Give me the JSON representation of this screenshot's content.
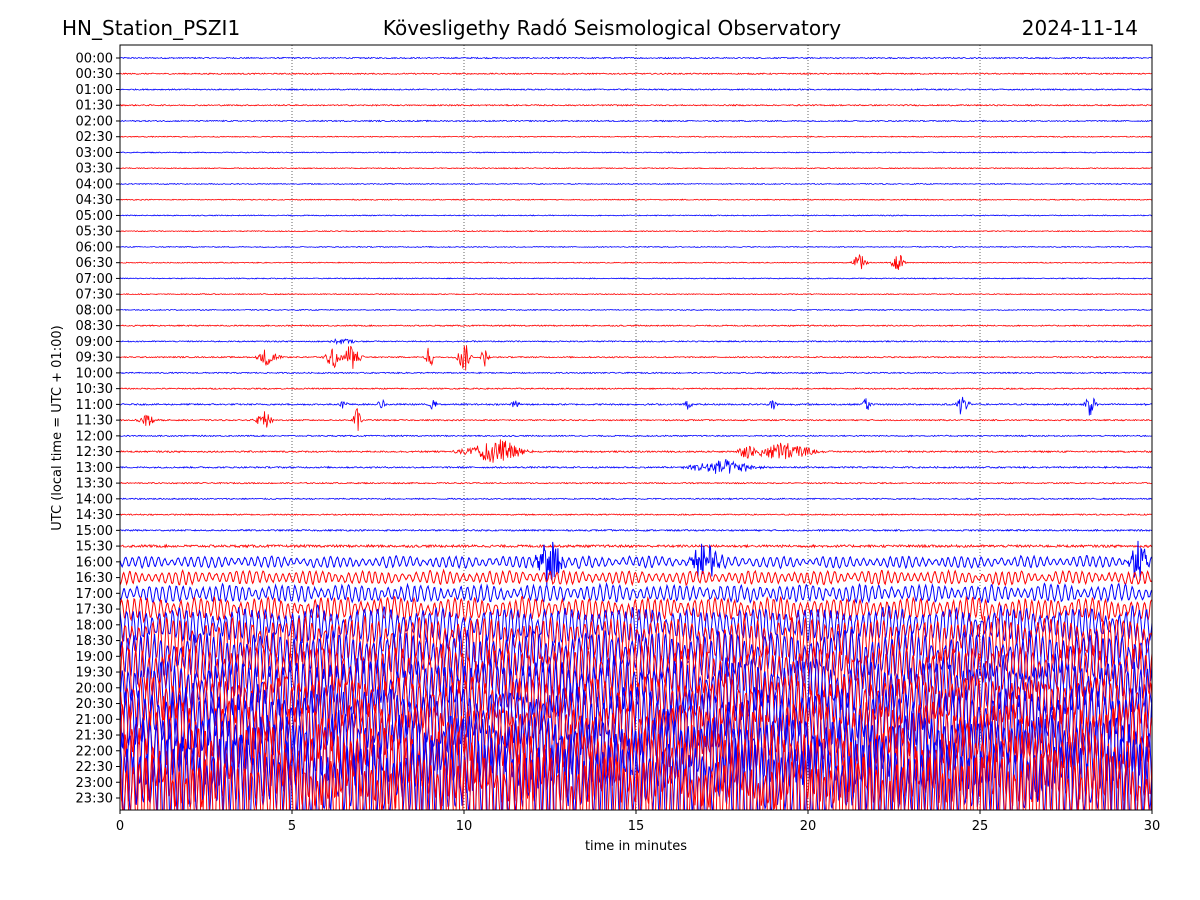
{
  "header": {
    "station": "HN_Station_PSZI1",
    "observatory": "Kövesligethy Radó Seismological Observatory",
    "date": "2024-11-14"
  },
  "chart_data": {
    "type": "line",
    "title": "Kövesligethy Radó Seismological Observatory",
    "xlabel": "time in minutes",
    "ylabel": "UTC (local time = UTC + 01:00)",
    "xlim": [
      0,
      30
    ],
    "xticks": [
      "0",
      "5",
      "10",
      "15",
      "20",
      "25",
      "30"
    ],
    "xtick_values": [
      0,
      5,
      10,
      15,
      20,
      25,
      30
    ],
    "grid": "vertical dotted at x ticks",
    "colors": [
      "#0000ff",
      "#ff0000"
    ],
    "traces": [
      {
        "label": "00:00",
        "noise": 0.04
      },
      {
        "label": "00:30",
        "noise": 0.04
      },
      {
        "label": "01:00",
        "noise": 0.04
      },
      {
        "label": "01:30",
        "noise": 0.04
      },
      {
        "label": "02:00",
        "noise": 0.04
      },
      {
        "label": "02:30",
        "noise": 0.03
      },
      {
        "label": "03:00",
        "noise": 0.03
      },
      {
        "label": "03:30",
        "noise": 0.03
      },
      {
        "label": "04:00",
        "noise": 0.03
      },
      {
        "label": "04:30",
        "noise": 0.03
      },
      {
        "label": "05:00",
        "noise": 0.03
      },
      {
        "label": "05:30",
        "noise": 0.03
      },
      {
        "label": "06:00",
        "noise": 0.03
      },
      {
        "label": "06:30",
        "noise": 0.03
      },
      {
        "label": "07:00",
        "noise": 0.03
      },
      {
        "label": "07:30",
        "noise": 0.03
      },
      {
        "label": "08:00",
        "noise": 0.03
      },
      {
        "label": "08:30",
        "noise": 0.04
      },
      {
        "label": "09:00",
        "noise": 0.04
      },
      {
        "label": "09:30",
        "noise": 0.04
      },
      {
        "label": "10:00",
        "noise": 0.04
      },
      {
        "label": "10:30",
        "noise": 0.04
      },
      {
        "label": "11:00",
        "noise": 0.05
      },
      {
        "label": "11:30",
        "noise": 0.04
      },
      {
        "label": "12:00",
        "noise": 0.04
      },
      {
        "label": "12:30",
        "noise": 0.05
      },
      {
        "label": "13:00",
        "noise": 0.05
      },
      {
        "label": "13:30",
        "noise": 0.04
      },
      {
        "label": "14:00",
        "noise": 0.04
      },
      {
        "label": "14:30",
        "noise": 0.04
      },
      {
        "label": "15:00",
        "noise": 0.05
      },
      {
        "label": "15:30",
        "noise": 0.08
      },
      {
        "label": "16:00",
        "noise": 0.3
      },
      {
        "label": "16:30",
        "noise": 0.35
      },
      {
        "label": "17:00",
        "noise": 0.45
      },
      {
        "label": "17:30",
        "noise": 0.6
      },
      {
        "label": "18:00",
        "noise": 0.9
      },
      {
        "label": "18:30",
        "noise": 1.2
      },
      {
        "label": "19:00",
        "noise": 1.3
      },
      {
        "label": "19:30",
        "noise": 1.4
      },
      {
        "label": "20:00",
        "noise": 1.5
      },
      {
        "label": "20:30",
        "noise": 1.4
      },
      {
        "label": "21:00",
        "noise": 1.7
      },
      {
        "label": "21:30",
        "noise": 1.8
      },
      {
        "label": "22:00",
        "noise": 2.0
      },
      {
        "label": "22:30",
        "noise": 2.1
      },
      {
        "label": "23:00",
        "noise": 2.3
      },
      {
        "label": "23:30",
        "noise": 2.4
      }
    ],
    "events": [
      {
        "trace": 13,
        "t": 21.5,
        "amp": 0.6,
        "dur": 0.15
      },
      {
        "trace": 13,
        "t": 22.6,
        "amp": 0.7,
        "dur": 0.15
      },
      {
        "trace": 18,
        "t": 6.5,
        "amp": 0.2,
        "dur": 0.3
      },
      {
        "trace": 19,
        "t": 4.3,
        "amp": 0.6,
        "dur": 0.25
      },
      {
        "trace": 19,
        "t": 6.2,
        "amp": 0.8,
        "dur": 0.2
      },
      {
        "trace": 19,
        "t": 6.7,
        "amp": 0.8,
        "dur": 0.25
      },
      {
        "trace": 19,
        "t": 9.0,
        "amp": 0.8,
        "dur": 0.1
      },
      {
        "trace": 19,
        "t": 10.0,
        "amp": 1.0,
        "dur": 0.15
      },
      {
        "trace": 19,
        "t": 10.6,
        "amp": 0.6,
        "dur": 0.1
      },
      {
        "trace": 22,
        "t": 6.5,
        "amp": 0.4,
        "dur": 0.1
      },
      {
        "trace": 22,
        "t": 7.6,
        "amp": 0.3,
        "dur": 0.1
      },
      {
        "trace": 22,
        "t": 9.1,
        "amp": 0.4,
        "dur": 0.1
      },
      {
        "trace": 22,
        "t": 11.5,
        "amp": 0.3,
        "dur": 0.1
      },
      {
        "trace": 22,
        "t": 16.5,
        "amp": 0.3,
        "dur": 0.1
      },
      {
        "trace": 22,
        "t": 19.0,
        "amp": 0.5,
        "dur": 0.1
      },
      {
        "trace": 22,
        "t": 21.7,
        "amp": 0.6,
        "dur": 0.1
      },
      {
        "trace": 22,
        "t": 24.5,
        "amp": 0.8,
        "dur": 0.15
      },
      {
        "trace": 22,
        "t": 28.2,
        "amp": 0.7,
        "dur": 0.15
      },
      {
        "trace": 23,
        "t": 0.8,
        "amp": 0.4,
        "dur": 0.2
      },
      {
        "trace": 23,
        "t": 4.2,
        "amp": 0.6,
        "dur": 0.2
      },
      {
        "trace": 23,
        "t": 6.9,
        "amp": 0.8,
        "dur": 0.1
      },
      {
        "trace": 25,
        "t": 11.0,
        "amp": 0.8,
        "dur": 0.6
      },
      {
        "trace": 25,
        "t": 10.3,
        "amp": 0.3,
        "dur": 0.5
      },
      {
        "trace": 25,
        "t": 18.2,
        "amp": 0.6,
        "dur": 0.2
      },
      {
        "trace": 25,
        "t": 19.3,
        "amp": 0.6,
        "dur": 0.7
      },
      {
        "trace": 26,
        "t": 17.5,
        "amp": 0.5,
        "dur": 0.8
      },
      {
        "trace": 32,
        "t": 12.5,
        "amp": 1.6,
        "dur": 0.3
      },
      {
        "trace": 32,
        "t": 17.0,
        "amp": 1.5,
        "dur": 0.3
      },
      {
        "trace": 32,
        "t": 29.6,
        "amp": 1.4,
        "dur": 0.2
      }
    ]
  }
}
